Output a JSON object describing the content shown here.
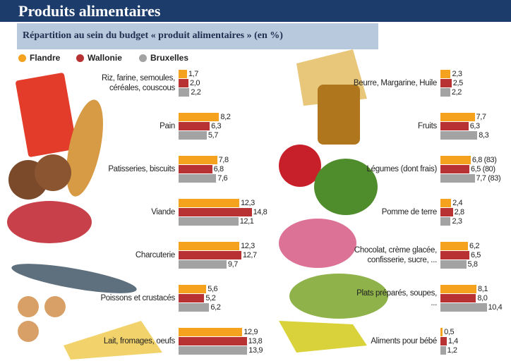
{
  "chart_data": {
    "type": "bar",
    "title": "Produits alimentaires",
    "subtitle": "Répartition au sein du budget « produit alimentaires » (en %)",
    "categories": [
      "Riz, farine, semoules, céréales, couscous",
      "Pain",
      "Patisseries, biscuits",
      "Viande",
      "Charcuterie",
      "Poissons et crustacés",
      "Lait, fromages, oeufs",
      "Beurre, Margarine, Huile",
      "Fruits",
      "Légumes (dont frais)",
      "Pomme de terre",
      "Chocolat, crème glacée, confisserie, sucre, ...",
      "Plats préparés, soupes, ...",
      "Aliments pour bébé"
    ],
    "series": [
      {
        "name": "Flandre",
        "color": "#f5a21f",
        "values": [
          1.7,
          8.2,
          7.8,
          12.3,
          12.3,
          5.6,
          12.9,
          2.3,
          7.7,
          6.8,
          2.4,
          6.2,
          8.1,
          0.5
        ],
        "value_labels": [
          "1,7",
          "8,2",
          "7,8",
          "12,3",
          "12,3",
          "5,6",
          "12,9",
          "2,3",
          "7,7",
          "6,8 (83)",
          "2,4",
          "6,2",
          "8,1",
          "0,5"
        ]
      },
      {
        "name": "Wallonie",
        "color": "#b83234",
        "values": [
          2.0,
          6.3,
          6.8,
          14.8,
          12.7,
          5.2,
          13.8,
          2.5,
          6.3,
          6.5,
          2.8,
          6.5,
          8.0,
          1.4
        ],
        "value_labels": [
          "2,0",
          "6,3",
          "6,8",
          "14,8",
          "12,7",
          "5,2",
          "13,8",
          "2,5",
          "6,3",
          "6,5 (80)",
          "2,8",
          "6,5",
          "8,0",
          "1,4"
        ]
      },
      {
        "name": "Bruxelles",
        "color": "#a3a3a3",
        "values": [
          2.2,
          5.7,
          7.6,
          12.1,
          9.7,
          6.2,
          13.9,
          2.2,
          8.3,
          7.7,
          2.3,
          5.8,
          10.4,
          1.2
        ],
        "value_labels": [
          "2,2",
          "5,7",
          "7,6",
          "12,1",
          "9,7",
          "6,2",
          "13,9",
          "2,2",
          "8,3",
          "7,7 (83)",
          "2,3",
          "5,8",
          "10,4",
          "1,2"
        ]
      }
    ]
  }
}
